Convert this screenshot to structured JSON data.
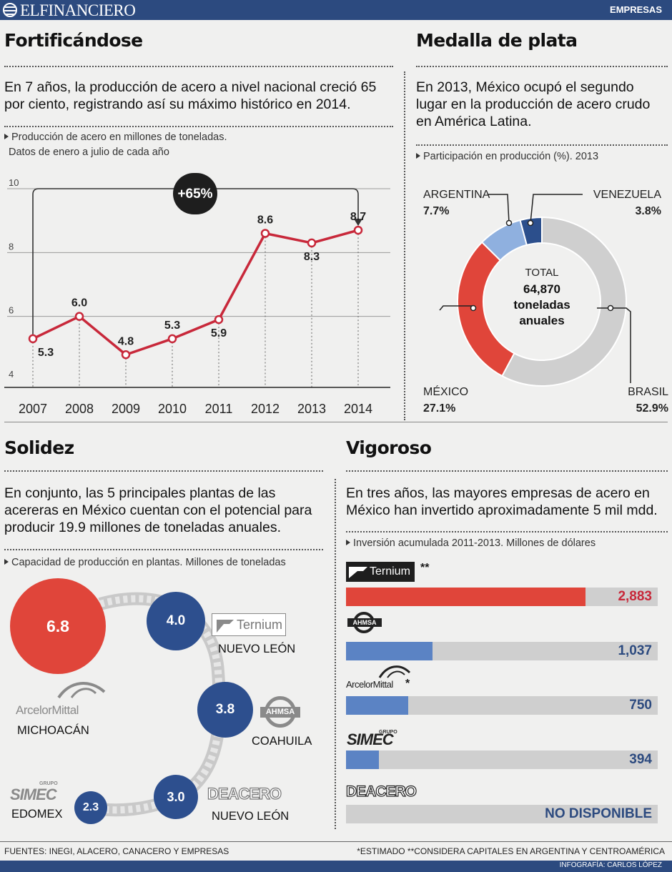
{
  "header": {
    "brand": "ELFINANCIERO",
    "section": "EMPRESAS"
  },
  "s1": {
    "title": "Fortificándose",
    "lead": "En 7 años, la producción de acero a nivel nacional creció 65 por ciento, registrando así su máximo histórico en 2014.",
    "note1": "Producción de acero en millones de toneladas.",
    "note2": "Datos de enero a julio de cada año",
    "badge": "+65%"
  },
  "s2": {
    "title": "Medalla de plata",
    "lead": "En 2013, México ocupó el segundo lugar en la producción de acero crudo en América Latina.",
    "note": "Participación en producción (%). 2013",
    "total_label": "TOTAL",
    "total_value": "64,870",
    "total_unit1": "toneladas",
    "total_unit2": "anuales"
  },
  "s3": {
    "title": "Solidez",
    "lead": "En conjunto, las 5 principales plantas de las acereras en México cuentan con el potencial para producir 19.9 millones de toneladas anuales.",
    "note": "Capacidad de producción en plantas. Millones de toneladas",
    "plants": [
      {
        "value": "6.8",
        "company": "ArcelorMittal",
        "place": "MICHOACÁN"
      },
      {
        "value": "4.0",
        "company": "Ternium",
        "place": "NUEVO LEÓN"
      },
      {
        "value": "3.8",
        "company": "AHMSA",
        "place": "COAHUILA"
      },
      {
        "value": "3.0",
        "company": "DEACERO",
        "place": "NUEVO LEÓN"
      },
      {
        "value": "2.3",
        "company": "SIMEC",
        "place": "EDOMEX"
      }
    ],
    "simec_grupo": "GRUPO"
  },
  "s4": {
    "title": "Vigoroso",
    "lead": "En tres años, las mayores empresas de acero en México han invertido aproximadamente 5 mil mdd.",
    "note": "Inversión acumulada 2011-2013. Millones de dólares",
    "companies": [
      {
        "name": "Ternium",
        "mark": "**",
        "value": 2883,
        "label": "2,883",
        "color": "#e0453a"
      },
      {
        "name": "AHMSA",
        "mark": "",
        "value": 1037,
        "label": "1,037",
        "color": "#5b83c4"
      },
      {
        "name": "ArcelorMittal",
        "mark": "*",
        "value": 750,
        "label": "750",
        "color": "#5b83c4"
      },
      {
        "name": "SIMEC",
        "mark": "",
        "value": 394,
        "label": "394",
        "color": "#5b83c4"
      },
      {
        "name": "DEACERO",
        "mark": "",
        "value": null,
        "label": "NO DISPONIBLE",
        "color": "#5b83c4"
      }
    ],
    "simec_grupo": "GRUPO"
  },
  "chart_data": [
    {
      "type": "line",
      "x": [
        "2007",
        "2008",
        "2009",
        "2010",
        "2011",
        "2012",
        "2013",
        "2014"
      ],
      "values": [
        5.3,
        6.0,
        4.8,
        5.3,
        5.9,
        8.6,
        8.3,
        8.7
      ],
      "labels": [
        "5.3",
        "6.0",
        "4.8",
        "5.3",
        "5.9",
        "8.6",
        "8.3",
        "8.7"
      ],
      "yticks": [
        "4",
        "6",
        "8",
        "10"
      ],
      "ylim": [
        4,
        10
      ],
      "grid": true,
      "color": "#c8283a"
    },
    {
      "type": "pie",
      "categories": [
        "BRASIL",
        "MÉXICO",
        "ARGENTINA",
        "VENEZUELA"
      ],
      "values": [
        52.9,
        27.1,
        7.7,
        3.8
      ],
      "labels": [
        "52.9%",
        "27.1%",
        "7.7%",
        "3.8%"
      ],
      "colors": [
        "#cfcfcf",
        "#e0453a",
        "#8fb0df",
        "#2c4f8c"
      ]
    }
  ],
  "footer": {
    "sources": "FUENTES: INEGI, ALACERO, CANACERO Y EMPRESAS",
    "notes": "*ESTIMADO **CONSIDERA CAPITALES EN ARGENTINA Y CENTROAMÉRICA",
    "credit": "INFOGRAFÍA: CARLOS LÓPEZ"
  }
}
